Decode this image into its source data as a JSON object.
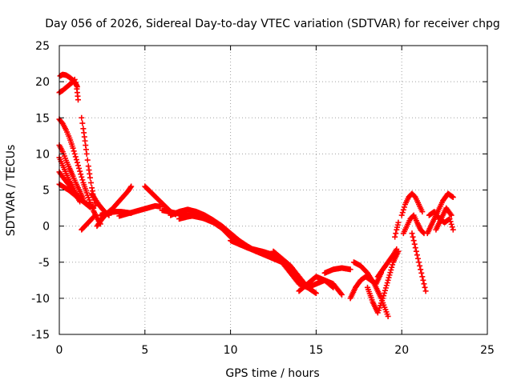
{
  "chart_data": {
    "type": "scatter",
    "title": "Day 056 of 2026, Sidereal Day-to-day VTEC variation (SDTVAR) for receiver chpg",
    "xlabel": "GPS time / hours",
    "ylabel": "SDTVAR / TECUs",
    "xlim": [
      0,
      25
    ],
    "ylim": [
      -15,
      25
    ],
    "xticks": [
      0,
      5,
      10,
      15,
      20,
      25
    ],
    "yticks": [
      -15,
      -10,
      -5,
      0,
      5,
      10,
      15,
      20,
      25
    ],
    "xtick_labels": [
      "0",
      "5",
      "10",
      "15",
      "20",
      "25"
    ],
    "ytick_labels": [
      "-15",
      "-10",
      "-5",
      "0",
      "5",
      "10",
      "15",
      "20",
      "25"
    ],
    "grid": true,
    "marker": "+",
    "color": "#ff0000",
    "series": [
      {
        "name": "trace-1",
        "x": [
          0.0,
          0.2,
          0.4,
          0.6,
          0.8,
          0.9,
          1.0,
          1.05,
          1.1
        ],
        "y": [
          18.5,
          18.8,
          19.2,
          19.6,
          20.0,
          20.3,
          19.5,
          18.5,
          17.5
        ]
      },
      {
        "name": "trace-2",
        "x": [
          0.05,
          0.2,
          0.4,
          0.6,
          0.8,
          0.95,
          1.05
        ],
        "y": [
          20.8,
          21.0,
          20.9,
          20.6,
          20.2,
          19.8,
          19.3
        ]
      },
      {
        "name": "trace-3",
        "x": [
          0.0,
          0.2,
          0.4,
          0.6,
          0.8,
          1.0,
          1.2,
          1.4,
          1.6,
          1.8,
          2.0,
          2.2,
          2.4
        ],
        "y": [
          14.8,
          14.2,
          13.3,
          12.2,
          10.8,
          9.2,
          7.6,
          6.0,
          4.6,
          3.3,
          2.1,
          1.1,
          0.3
        ]
      },
      {
        "name": "trace-4",
        "x": [
          1.3,
          1.4,
          1.5,
          1.6,
          1.7,
          1.8,
          1.9,
          2.0,
          2.1
        ],
        "y": [
          15.0,
          13.5,
          11.8,
          10.0,
          8.3,
          6.7,
          5.3,
          4.0,
          2.8
        ]
      },
      {
        "name": "trace-5",
        "x": [
          0.0,
          0.2,
          0.4,
          0.6,
          0.8,
          1.0,
          1.2,
          1.4
        ],
        "y": [
          11.2,
          10.3,
          9.1,
          8.0,
          6.9,
          5.8,
          4.8,
          3.8
        ]
      },
      {
        "name": "trace-6",
        "x": [
          0.0,
          0.2,
          0.4,
          0.6,
          0.8,
          1.0,
          1.2
        ],
        "y": [
          9.5,
          8.4,
          7.3,
          6.2,
          5.2,
          4.2,
          3.4
        ]
      },
      {
        "name": "trace-7",
        "x": [
          0.0,
          0.2,
          0.4,
          0.6,
          0.8,
          1.0,
          1.2,
          1.4,
          1.6,
          1.8
        ],
        "y": [
          7.5,
          6.8,
          6.2,
          5.6,
          5.0,
          4.4,
          3.9,
          3.4,
          3.0,
          2.6
        ]
      },
      {
        "name": "trace-8",
        "x": [
          0.0,
          0.2,
          0.4,
          0.6,
          0.8,
          1.0,
          1.2,
          1.4,
          1.6,
          1.8,
          2.0
        ],
        "y": [
          5.8,
          5.5,
          5.2,
          4.9,
          4.5,
          4.1,
          3.7,
          3.4,
          3.1,
          2.8,
          2.5
        ]
      },
      {
        "name": "trace-9",
        "x": [
          1.3,
          1.5,
          1.7,
          1.9,
          2.1
        ],
        "y": [
          -0.5,
          0.0,
          0.5,
          1.0,
          1.5
        ]
      },
      {
        "name": "trace-10",
        "x": [
          1.9,
          2.1,
          2.3,
          2.5,
          2.7,
          2.9
        ],
        "y": [
          4.5,
          3.7,
          3.0,
          2.4,
          1.9,
          1.5
        ]
      },
      {
        "name": "trace-11",
        "x": [
          2.2,
          2.5,
          2.8,
          3.1,
          3.4,
          3.7,
          4.0,
          4.2
        ],
        "y": [
          0.0,
          1.0,
          1.8,
          2.4,
          3.2,
          4.0,
          4.8,
          5.5
        ]
      },
      {
        "name": "trace-12",
        "x": [
          2.4,
          2.7,
          3.0,
          3.3,
          3.6,
          3.9,
          4.2
        ],
        "y": [
          1.5,
          1.7,
          1.9,
          2.0,
          2.0,
          1.9,
          1.8
        ]
      },
      {
        "name": "trace-13",
        "x": [
          3.5,
          3.8,
          4.1,
          4.4,
          4.7,
          5.0,
          5.3,
          5.6,
          5.9
        ],
        "y": [
          1.4,
          1.6,
          1.8,
          2.0,
          2.2,
          2.4,
          2.6,
          2.8,
          2.7
        ]
      },
      {
        "name": "trace-14",
        "x": [
          5.0,
          5.3,
          5.6,
          5.9,
          6.2,
          6.5,
          6.8
        ],
        "y": [
          5.5,
          4.8,
          4.1,
          3.4,
          2.7,
          2.0,
          1.6
        ]
      },
      {
        "name": "trace-15",
        "x": [
          6.0,
          6.4,
          6.8,
          7.2,
          7.6,
          8.0,
          8.4,
          8.8
        ],
        "y": [
          2.2,
          2.0,
          1.8,
          1.6,
          1.5,
          1.3,
          1.1,
          0.8
        ]
      },
      {
        "name": "trace-16",
        "x": [
          6.5,
          7.0,
          7.5,
          8.0,
          8.5,
          9.0,
          9.5,
          10.0,
          10.5,
          11.0,
          11.5,
          12.0,
          12.5,
          13.0,
          13.5,
          14.0
        ],
        "y": [
          1.5,
          2.0,
          2.3,
          2.0,
          1.5,
          0.8,
          0.0,
          -1.0,
          -2.0,
          -2.8,
          -3.5,
          -4.0,
          -4.5,
          -5.0,
          -6.0,
          -7.5
        ]
      },
      {
        "name": "trace-17",
        "x": [
          7.0,
          7.5,
          8.0,
          8.5,
          9.0,
          9.5,
          10.0,
          10.5,
          11.0,
          11.5,
          12.0,
          12.5
        ],
        "y": [
          1.0,
          1.3,
          1.5,
          1.0,
          0.5,
          -0.3,
          -1.5,
          -2.5,
          -3.0,
          -3.5,
          -3.8,
          -4.0
        ]
      },
      {
        "name": "trace-18",
        "x": [
          10.0,
          10.5,
          11.0,
          11.5,
          12.0,
          12.5,
          13.0,
          13.5,
          14.0,
          14.5,
          15.0,
          15.5,
          16.0
        ],
        "y": [
          -2.0,
          -2.5,
          -3.0,
          -3.3,
          -3.6,
          -4.0,
          -5.0,
          -6.5,
          -8.0,
          -8.5,
          -8.0,
          -7.5,
          -8.5
        ]
      },
      {
        "name": "trace-19",
        "x": [
          12.5,
          13.0,
          13.5,
          14.0,
          14.5,
          15.0
        ],
        "y": [
          -3.5,
          -4.5,
          -5.5,
          -7.0,
          -8.5,
          -9.3
        ]
      },
      {
        "name": "trace-20",
        "x": [
          14.0,
          14.5,
          15.0,
          15.5,
          16.0,
          16.5
        ],
        "y": [
          -9.0,
          -8.0,
          -7.0,
          -7.5,
          -8.0,
          -9.5
        ]
      },
      {
        "name": "trace-21",
        "x": [
          15.5,
          16.0,
          16.5,
          17.0
        ],
        "y": [
          -6.5,
          -6.0,
          -5.8,
          -6.0
        ]
      },
      {
        "name": "trace-22",
        "x": [
          17.0,
          17.3,
          17.6,
          17.9,
          18.2,
          18.5,
          18.8
        ],
        "y": [
          -10.0,
          -8.5,
          -7.5,
          -7.0,
          -7.5,
          -8.0,
          -6.5
        ]
      },
      {
        "name": "trace-23",
        "x": [
          17.2,
          17.6,
          18.0,
          18.4,
          18.8,
          19.2
        ],
        "y": [
          -5.0,
          -5.5,
          -6.5,
          -8.0,
          -10.0,
          -12.5
        ]
      },
      {
        "name": "trace-24",
        "x": [
          18.0,
          18.3,
          18.6,
          18.9,
          19.2,
          19.5,
          19.8
        ],
        "y": [
          -8.5,
          -10.5,
          -12.0,
          -10.0,
          -7.5,
          -5.0,
          -3.5
        ]
      },
      {
        "name": "trace-25",
        "x": [
          18.6,
          18.9,
          19.2,
          19.5,
          19.7
        ],
        "y": [
          -7.0,
          -6.0,
          -5.0,
          -4.0,
          -3.2
        ]
      },
      {
        "name": "trace-26",
        "x": [
          19.6,
          19.7,
          19.8
        ],
        "y": [
          -1.5,
          -0.5,
          0.5
        ]
      },
      {
        "name": "trace-27",
        "x": [
          20.0,
          20.2,
          20.4,
          20.6,
          20.8,
          21.0,
          21.2
        ],
        "y": [
          1.5,
          3.0,
          4.0,
          4.5,
          4.0,
          3.0,
          2.0
        ]
      },
      {
        "name": "trace-28",
        "x": [
          20.1,
          20.3,
          20.5,
          20.7,
          20.9,
          21.1,
          21.3
        ],
        "y": [
          -1.0,
          0.0,
          1.0,
          1.5,
          0.5,
          -0.5,
          -1.0
        ]
      },
      {
        "name": "trace-29",
        "x": [
          20.6,
          20.8,
          21.0,
          21.2,
          21.4
        ],
        "y": [
          -1.0,
          -3.0,
          -5.0,
          -7.0,
          -9.0
        ]
      },
      {
        "name": "trace-30",
        "x": [
          21.5,
          21.8,
          22.1,
          22.4,
          22.7,
          23.0
        ],
        "y": [
          -1.0,
          0.5,
          2.0,
          3.5,
          4.5,
          4.0
        ]
      },
      {
        "name": "trace-31",
        "x": [
          21.6,
          21.9,
          22.2,
          22.5,
          22.8,
          23.0
        ],
        "y": [
          1.5,
          2.0,
          1.0,
          0.5,
          1.0,
          -0.5
        ]
      },
      {
        "name": "trace-32",
        "x": [
          22.0,
          22.3,
          22.6,
          22.9
        ],
        "y": [
          -0.5,
          1.0,
          2.5,
          1.5
        ]
      }
    ]
  }
}
